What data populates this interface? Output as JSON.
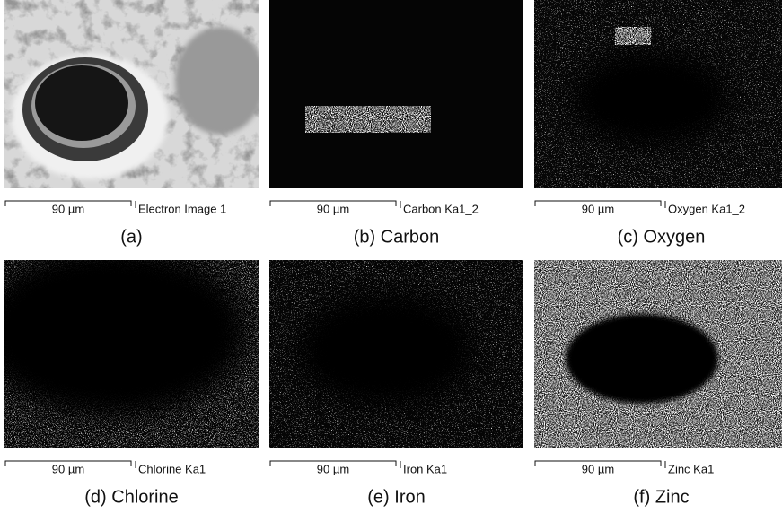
{
  "panels": [
    {
      "label": "Electron Image 1",
      "scale": "90 µm",
      "caption": "(a)"
    },
    {
      "label": "Carbon Ka1_2",
      "scale": "90 µm",
      "caption": "(b) Carbon"
    },
    {
      "label": "Oxygen Ka1_2",
      "scale": "90 µm",
      "caption": "(c) Oxygen"
    },
    {
      "label": "Chlorine Ka1",
      "scale": "90 µm",
      "caption": "(d) Chlorine"
    },
    {
      "label": "Iron Ka1",
      "scale": "90 µm",
      "caption": "(e) Iron"
    },
    {
      "label": "Zinc Ka1",
      "scale": "90 µm",
      "caption": "(f) Zinc"
    }
  ]
}
